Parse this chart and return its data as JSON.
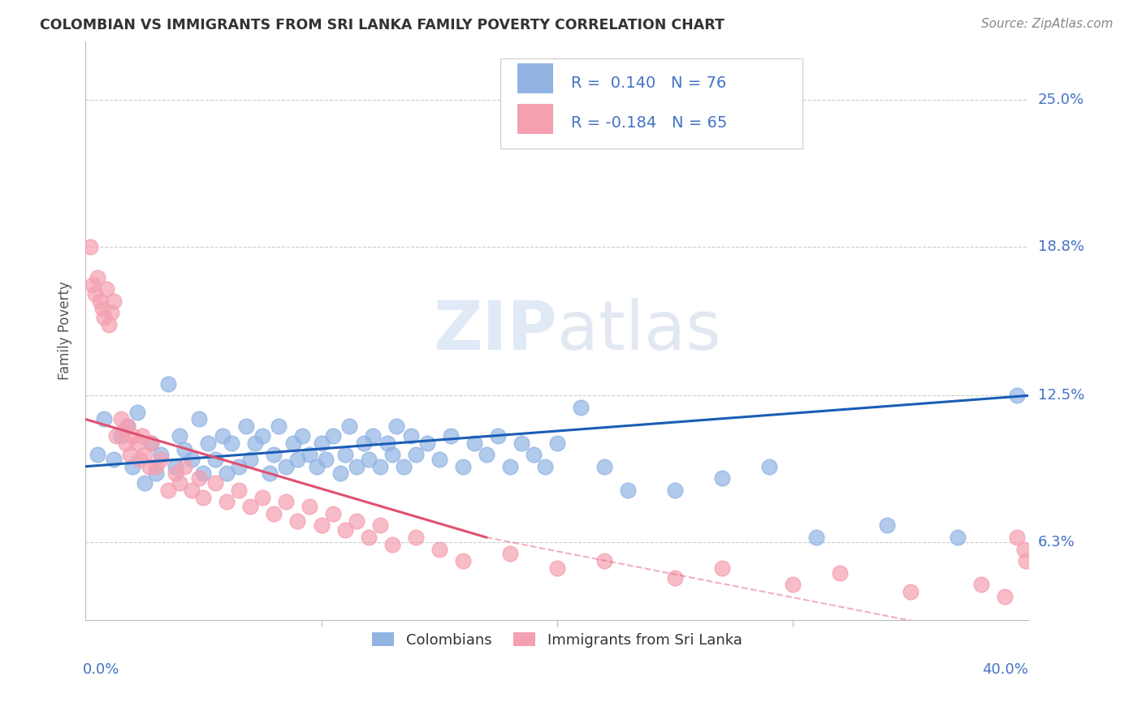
{
  "title": "COLOMBIAN VS IMMIGRANTS FROM SRI LANKA FAMILY POVERTY CORRELATION CHART",
  "source": "Source: ZipAtlas.com",
  "ylabel": "Family Poverty",
  "ytick_labels": [
    "6.3%",
    "12.5%",
    "18.8%",
    "25.0%"
  ],
  "ytick_values": [
    0.063,
    0.125,
    0.188,
    0.25
  ],
  "xlim": [
    0.0,
    0.4
  ],
  "ylim": [
    0.03,
    0.275
  ],
  "colombian_R": 0.14,
  "colombian_N": 76,
  "srilanka_R": -0.184,
  "srilanka_N": 65,
  "colombian_color": "#92b4e3",
  "srilanka_color": "#f4a0b0",
  "colombian_line_color": "#1a5db5",
  "srilanka_line_color": "#e05070",
  "legend1_label": "Colombians",
  "legend2_label": "Immigrants from Sri Lanka",
  "watermark_zip": "ZIP",
  "watermark_atlas": "atlas",
  "background_color": "#ffffff",
  "grid_color": "#cccccc",
  "colombian_x": [
    0.005,
    0.008,
    0.012,
    0.015,
    0.018,
    0.02,
    0.022,
    0.025,
    0.028,
    0.03,
    0.032,
    0.035,
    0.038,
    0.04,
    0.042,
    0.045,
    0.048,
    0.05,
    0.052,
    0.055,
    0.058,
    0.06,
    0.062,
    0.065,
    0.068,
    0.07,
    0.072,
    0.075,
    0.078,
    0.08,
    0.082,
    0.085,
    0.088,
    0.09,
    0.092,
    0.095,
    0.098,
    0.1,
    0.102,
    0.105,
    0.108,
    0.11,
    0.112,
    0.115,
    0.118,
    0.12,
    0.122,
    0.125,
    0.128,
    0.13,
    0.132,
    0.135,
    0.138,
    0.14,
    0.145,
    0.15,
    0.155,
    0.16,
    0.165,
    0.17,
    0.175,
    0.18,
    0.185,
    0.19,
    0.195,
    0.2,
    0.21,
    0.22,
    0.23,
    0.25,
    0.27,
    0.29,
    0.31,
    0.34,
    0.37,
    0.395
  ],
  "colombian_y": [
    0.1,
    0.115,
    0.098,
    0.108,
    0.112,
    0.095,
    0.118,
    0.088,
    0.105,
    0.092,
    0.1,
    0.13,
    0.095,
    0.108,
    0.102,
    0.098,
    0.115,
    0.092,
    0.105,
    0.098,
    0.108,
    0.092,
    0.105,
    0.095,
    0.112,
    0.098,
    0.105,
    0.108,
    0.092,
    0.1,
    0.112,
    0.095,
    0.105,
    0.098,
    0.108,
    0.1,
    0.095,
    0.105,
    0.098,
    0.108,
    0.092,
    0.1,
    0.112,
    0.095,
    0.105,
    0.098,
    0.108,
    0.095,
    0.105,
    0.1,
    0.112,
    0.095,
    0.108,
    0.1,
    0.105,
    0.098,
    0.108,
    0.095,
    0.105,
    0.1,
    0.108,
    0.095,
    0.105,
    0.1,
    0.095,
    0.105,
    0.12,
    0.095,
    0.085,
    0.085,
    0.09,
    0.095,
    0.065,
    0.07,
    0.065,
    0.125
  ],
  "srilanka_x": [
    0.002,
    0.003,
    0.004,
    0.005,
    0.006,
    0.007,
    0.008,
    0.009,
    0.01,
    0.011,
    0.012,
    0.013,
    0.015,
    0.016,
    0.017,
    0.018,
    0.019,
    0.02,
    0.022,
    0.023,
    0.024,
    0.025,
    0.027,
    0.028,
    0.03,
    0.032,
    0.035,
    0.038,
    0.04,
    0.042,
    0.045,
    0.048,
    0.05,
    0.055,
    0.06,
    0.065,
    0.07,
    0.075,
    0.08,
    0.085,
    0.09,
    0.095,
    0.1,
    0.105,
    0.11,
    0.115,
    0.12,
    0.125,
    0.13,
    0.14,
    0.15,
    0.16,
    0.18,
    0.2,
    0.22,
    0.25,
    0.27,
    0.3,
    0.32,
    0.35,
    0.38,
    0.39,
    0.395,
    0.398,
    0.399
  ],
  "srilanka_y": [
    0.188,
    0.172,
    0.168,
    0.175,
    0.165,
    0.162,
    0.158,
    0.17,
    0.155,
    0.16,
    0.165,
    0.108,
    0.115,
    0.11,
    0.105,
    0.112,
    0.1,
    0.108,
    0.105,
    0.098,
    0.108,
    0.1,
    0.095,
    0.105,
    0.095,
    0.098,
    0.085,
    0.092,
    0.088,
    0.095,
    0.085,
    0.09,
    0.082,
    0.088,
    0.08,
    0.085,
    0.078,
    0.082,
    0.075,
    0.08,
    0.072,
    0.078,
    0.07,
    0.075,
    0.068,
    0.072,
    0.065,
    0.07,
    0.062,
    0.065,
    0.06,
    0.055,
    0.058,
    0.052,
    0.055,
    0.048,
    0.052,
    0.045,
    0.05,
    0.042,
    0.045,
    0.04,
    0.065,
    0.06,
    0.055
  ]
}
